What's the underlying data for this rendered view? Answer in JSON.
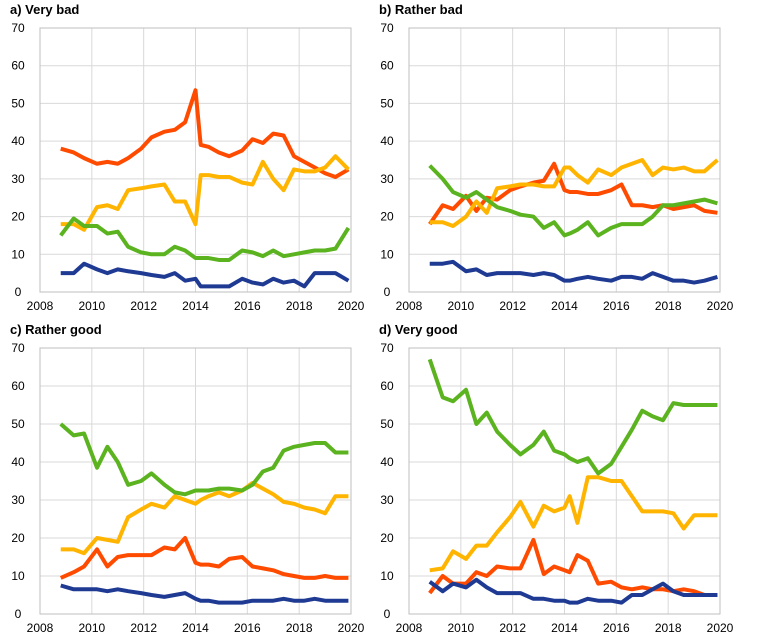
{
  "chart_data": [
    {
      "type": "line",
      "title": "a) Very bad",
      "x": [
        2008.8,
        2009.3,
        2009.7,
        2010.2,
        2010.6,
        2011.0,
        2011.4,
        2011.9,
        2012.3,
        2012.8,
        2013.2,
        2013.6,
        2014.0,
        2014.2,
        2014.5,
        2014.9,
        2015.3,
        2015.8,
        2016.2,
        2016.6,
        2017.0,
        2017.4,
        2017.8,
        2018.2,
        2018.6,
        2019.0,
        2019.4,
        2019.9
      ],
      "series": [
        {
          "color": "#ff4b00",
          "values": [
            38,
            37,
            35.5,
            34,
            34.5,
            34,
            35.5,
            38,
            41,
            42.5,
            43,
            45,
            53.5,
            39,
            38.5,
            37,
            36,
            37.5,
            40.5,
            39.5,
            42,
            41.5,
            36,
            34.5,
            33,
            31.5,
            30.5,
            32.5
          ]
        },
        {
          "color": "#ffb400",
          "values": [
            18,
            18,
            16.5,
            22.5,
            23,
            22,
            27,
            27.5,
            28,
            28.5,
            24,
            24,
            18,
            31,
            31,
            30.5,
            30.5,
            29,
            28.5,
            34.5,
            30,
            27,
            32.5,
            32,
            32,
            33,
            36,
            32.5
          ]
        },
        {
          "color": "#5ab31f",
          "values": [
            15,
            19.5,
            17.5,
            17.5,
            15.5,
            16,
            12,
            10.5,
            10,
            10,
            12,
            11,
            9,
            9,
            9,
            8.5,
            8.5,
            11,
            10.5,
            9.5,
            11,
            9.5,
            10,
            10.5,
            11,
            11,
            11.5,
            17
          ]
        },
        {
          "color": "#1f3a93",
          "values": [
            5,
            5,
            7.5,
            6,
            5,
            6,
            5.5,
            5,
            4.5,
            4,
            5,
            3,
            3.5,
            1.5,
            1.5,
            1.5,
            1.5,
            3.5,
            2.5,
            2,
            3.5,
            2.5,
            3,
            1.5,
            5,
            5,
            5,
            3
          ]
        }
      ],
      "xlim": [
        2008,
        2020
      ],
      "xticks": [
        2008,
        2010,
        2012,
        2014,
        2016,
        2018,
        2020
      ],
      "ylim": [
        0,
        70
      ],
      "yticks": [
        0,
        10,
        20,
        30,
        40,
        50,
        60,
        70
      ],
      "grid": true
    },
    {
      "type": "line",
      "title": "b) Rather bad",
      "x": [
        2008.8,
        2009.3,
        2009.7,
        2010.2,
        2010.6,
        2011.0,
        2011.4,
        2011.9,
        2012.3,
        2012.8,
        2013.2,
        2013.6,
        2014.0,
        2014.2,
        2014.5,
        2014.9,
        2015.3,
        2015.8,
        2016.2,
        2016.6,
        2017.0,
        2017.4,
        2017.8,
        2018.2,
        2018.6,
        2019.0,
        2019.4,
        2019.9
      ],
      "series": [
        {
          "color": "#ff4b00",
          "values": [
            18,
            23,
            22,
            25.5,
            21.5,
            25,
            24.5,
            27,
            28,
            29,
            29.5,
            34,
            27,
            26.5,
            26.5,
            26,
            26,
            27,
            28.5,
            23,
            23,
            22.5,
            23,
            22,
            22.5,
            23,
            21.5,
            21
          ]
        },
        {
          "color": "#ffb400",
          "values": [
            18.5,
            18.5,
            17.5,
            20,
            24,
            21,
            27.5,
            28,
            28.5,
            28.5,
            28,
            28,
            33,
            33,
            31,
            29,
            32.5,
            31,
            33,
            34,
            35,
            31,
            33,
            32.5,
            33,
            32,
            32,
            35
          ]
        },
        {
          "color": "#5ab31f",
          "values": [
            33.5,
            30,
            26.5,
            25,
            26.5,
            24.5,
            22.5,
            21.5,
            20.5,
            20,
            17,
            18.5,
            15,
            15.5,
            16.5,
            18.5,
            15,
            17,
            18,
            18,
            18,
            20,
            23,
            23,
            23.5,
            24,
            24.5,
            23.5
          ]
        },
        {
          "color": "#1f3a93",
          "values": [
            7.5,
            7.5,
            8,
            5.5,
            6,
            4.5,
            5,
            5,
            5,
            4.5,
            5,
            4.5,
            3,
            3,
            3.5,
            4,
            3.5,
            3,
            4,
            4,
            3.5,
            5,
            4,
            3,
            3,
            2.5,
            3,
            4
          ]
        }
      ],
      "xlim": [
        2008,
        2020
      ],
      "xticks": [
        2008,
        2010,
        2012,
        2014,
        2016,
        2018,
        2020
      ],
      "ylim": [
        0,
        70
      ],
      "yticks": [
        0,
        10,
        20,
        30,
        40,
        50,
        60,
        70
      ],
      "grid": true
    },
    {
      "type": "line",
      "title": "c) Rather good",
      "x": [
        2008.8,
        2009.3,
        2009.7,
        2010.2,
        2010.6,
        2011.0,
        2011.4,
        2011.9,
        2012.3,
        2012.8,
        2013.2,
        2013.6,
        2014.0,
        2014.2,
        2014.5,
        2014.9,
        2015.3,
        2015.8,
        2016.2,
        2016.6,
        2017.0,
        2017.4,
        2017.8,
        2018.2,
        2018.6,
        2019.0,
        2019.4,
        2019.9
      ],
      "series": [
        {
          "color": "#ff4b00",
          "values": [
            9.5,
            11,
            12.5,
            17,
            12.5,
            15,
            15.5,
            15.5,
            15.5,
            17.5,
            17,
            20,
            13.5,
            13,
            13,
            12.5,
            14.5,
            15,
            12.5,
            12,
            11.5,
            10.5,
            10,
            9.5,
            9.5,
            10,
            9.5,
            9.5
          ]
        },
        {
          "color": "#ffb400",
          "values": [
            17,
            17,
            16,
            20,
            19.5,
            19,
            25.5,
            27.5,
            29,
            28,
            31,
            30,
            29,
            30,
            31,
            32,
            31,
            32.5,
            34.5,
            33,
            31.5,
            29.5,
            29,
            28,
            27.5,
            26.5,
            31,
            31
          ]
        },
        {
          "color": "#5ab31f",
          "values": [
            50,
            47,
            47.5,
            38.5,
            44,
            40,
            34,
            35,
            37,
            34,
            32,
            31.5,
            32.5,
            32.5,
            32.5,
            33,
            33,
            32.5,
            34,
            37.5,
            38.5,
            43,
            44,
            44.5,
            45,
            45,
            42.5,
            42.5
          ]
        },
        {
          "color": "#1f3a93",
          "values": [
            7.5,
            6.5,
            6.5,
            6.5,
            6,
            6.5,
            6,
            5.5,
            5,
            4.5,
            5,
            5.5,
            4,
            3.5,
            3.5,
            3,
            3,
            3,
            3.5,
            3.5,
            3.5,
            4,
            3.5,
            3.5,
            4,
            3.5,
            3.5,
            3.5
          ]
        }
      ],
      "xlim": [
        2008,
        2020
      ],
      "xticks": [
        2008,
        2010,
        2012,
        2014,
        2016,
        2018,
        2020
      ],
      "ylim": [
        0,
        70
      ],
      "yticks": [
        0,
        10,
        20,
        30,
        40,
        50,
        60,
        70
      ],
      "grid": true
    },
    {
      "type": "line",
      "title": "d) Very good",
      "x": [
        2008.8,
        2009.3,
        2009.7,
        2010.2,
        2010.6,
        2011.0,
        2011.4,
        2011.9,
        2012.3,
        2012.8,
        2013.2,
        2013.6,
        2014.0,
        2014.2,
        2014.5,
        2014.9,
        2015.3,
        2015.8,
        2016.2,
        2016.6,
        2017.0,
        2017.4,
        2017.8,
        2018.2,
        2018.6,
        2019.0,
        2019.4,
        2019.9
      ],
      "series": [
        {
          "color": "#ff4b00",
          "values": [
            5.5,
            10,
            8,
            8,
            11,
            10,
            12.5,
            12,
            12,
            19.5,
            10.5,
            12.5,
            11.5,
            11,
            15.5,
            14,
            8,
            8.5,
            7,
            6.5,
            7,
            6.5,
            6.5,
            6,
            6.5,
            6,
            5,
            5
          ]
        },
        {
          "color": "#ffb400",
          "values": [
            11.5,
            12,
            16.5,
            14.5,
            18,
            18,
            21.5,
            25.5,
            29.5,
            23,
            28.5,
            27,
            28,
            31,
            24,
            36,
            36,
            35,
            35,
            31,
            27,
            27,
            27,
            26.5,
            22.5,
            26,
            26,
            26
          ]
        },
        {
          "color": "#5ab31f",
          "values": [
            67,
            57,
            56,
            59,
            50,
            53,
            48,
            44.5,
            42,
            44.5,
            48,
            43,
            42,
            41,
            40,
            41,
            37,
            39.5,
            44,
            48.5,
            53.5,
            52,
            51,
            55.5,
            55,
            55,
            55,
            55
          ]
        },
        {
          "color": "#1f3a93",
          "values": [
            8.5,
            6,
            8,
            7,
            9,
            7,
            5.5,
            5.5,
            5.5,
            4,
            4,
            3.5,
            3.5,
            3,
            3,
            4,
            3.5,
            3.5,
            3,
            5,
            5,
            6.5,
            8,
            6,
            5,
            5,
            5,
            5
          ]
        }
      ],
      "xlim": [
        2008,
        2020
      ],
      "xticks": [
        2008,
        2010,
        2012,
        2014,
        2016,
        2018,
        2020
      ],
      "ylim": [
        0,
        70
      ],
      "yticks": [
        0,
        10,
        20,
        30,
        40,
        50,
        60,
        70
      ],
      "grid": true
    }
  ]
}
